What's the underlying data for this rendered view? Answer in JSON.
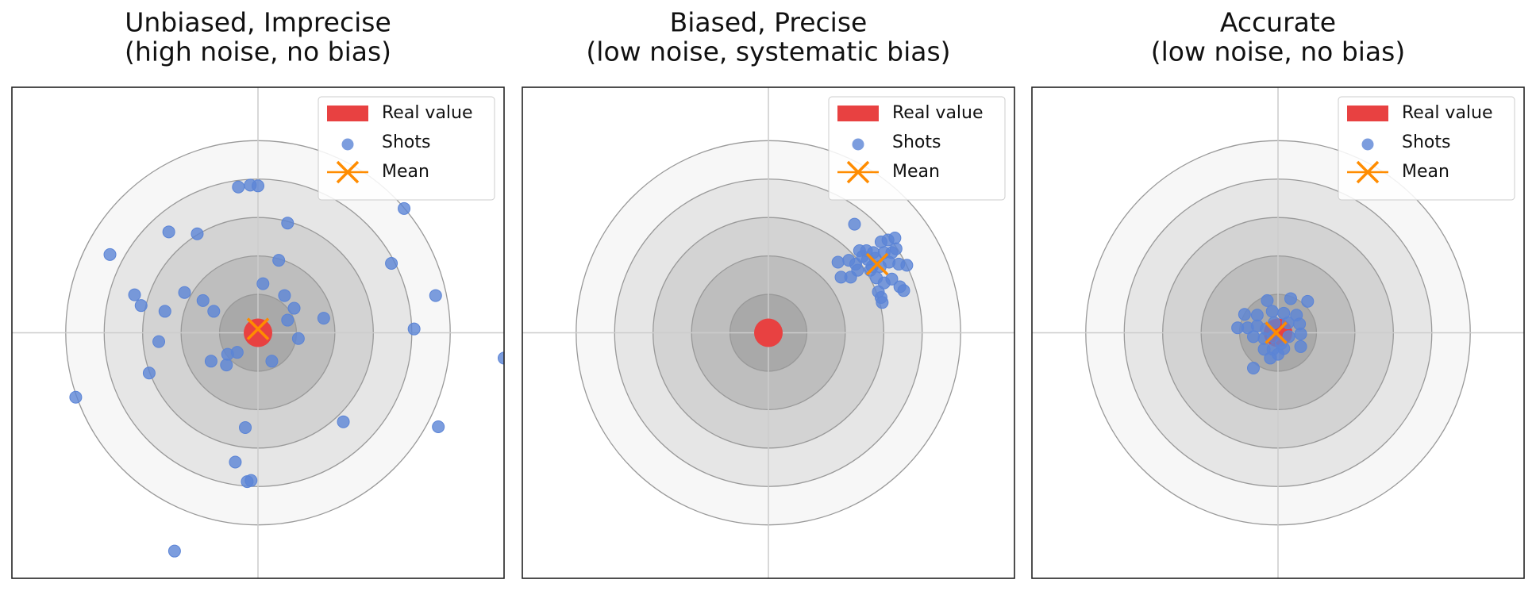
{
  "chart_data": [
    {
      "type": "scatter",
      "title": "Unbiased, Imprecise",
      "subtitle": "(high noise, no bias)",
      "xlim": [
        -6.4,
        6.4
      ],
      "ylim": [
        -6.4,
        6.4
      ],
      "rings": [
        5,
        4,
        3,
        2,
        1
      ],
      "ring_colors": [
        "#f7f7f7",
        "#e6e6e6",
        "#d3d3d3",
        "#bebebe",
        "#a9a9a9"
      ],
      "crosshair": true,
      "legend": "upper right",
      "series": [
        {
          "name": "Real value",
          "color": "#e84141",
          "x": [
            0
          ],
          "y": [
            0
          ]
        },
        {
          "name": "Shots",
          "color": "#5b84d6",
          "x": [
            -0.51,
            -0.2,
            0,
            3.8,
            -2.32,
            -1.58,
            0.77,
            -3.85,
            0.54,
            3.47,
            -3.21,
            -3.04,
            -1.91,
            -1.43,
            -2.42,
            -1.15,
            0.13,
            0.69,
            0.94,
            0.77,
            1.71,
            4.62,
            4.06,
            1.05,
            -2.58,
            -0.54,
            -0.79,
            -1.22,
            -0.82,
            0.36,
            -2.83,
            6.4,
            -4.74,
            2.22,
            4.69,
            -0.33,
            -0.59,
            -0.28,
            -0.18,
            -2.17
          ],
          "y": [
            3.8,
            3.85,
            3.83,
            3.24,
            2.63,
            2.58,
            2.86,
            2.04,
            1.89,
            1.81,
            0.99,
            0.71,
            1.05,
            0.84,
            0.56,
            0.56,
            1.28,
            0.97,
            0.64,
            0.33,
            0.38,
            0.97,
            0.1,
            -0.15,
            -0.23,
            -0.51,
            -0.56,
            -0.74,
            -0.84,
            -0.74,
            -1.05,
            -0.66,
            -1.68,
            -2.32,
            -2.45,
            -2.47,
            -3.37,
            -3.88,
            -3.85,
            -5.69
          ]
        },
        {
          "name": "Mean",
          "color": "#ff8c00",
          "x": [
            0
          ],
          "y": [
            0.1
          ]
        }
      ]
    },
    {
      "type": "scatter",
      "title": "Biased, Precise",
      "subtitle": "(low noise, systematic bias)",
      "xlim": [
        -6.4,
        6.4
      ],
      "ylim": [
        -6.4,
        6.4
      ],
      "rings": [
        5,
        4,
        3,
        2,
        1
      ],
      "ring_colors": [
        "#f7f7f7",
        "#e6e6e6",
        "#d3d3d3",
        "#bebebe",
        "#a9a9a9"
      ],
      "crosshair": true,
      "legend": "upper right",
      "series": [
        {
          "name": "Real value",
          "color": "#e84141",
          "x": [
            0
          ],
          "y": [
            0
          ]
        },
        {
          "name": "Shots",
          "color": "#5b84d6",
          "x": [
            2.24,
            2.37,
            2.55,
            1.81,
            2.09,
            2.27,
            2.45,
            2.73,
            2.93,
            3.11,
            3.29,
            3.01,
            3.21,
            3.32,
            2.7,
            2.91,
            3.14,
            3.39,
            3.6,
            1.89,
            2.14,
            2.81,
            3.01,
            3.21,
            3.42,
            3.52,
            2.86,
            2.93,
            2.96,
            2.65,
            2.32,
            2.58,
            2.78
          ],
          "y": [
            2.83,
            2.14,
            2.14,
            1.84,
            1.89,
            1.79,
            1.99,
            2.09,
            2.37,
            2.42,
            2.47,
            2.09,
            2.09,
            2.19,
            1.73,
            1.73,
            1.84,
            1.79,
            1.76,
            1.45,
            1.45,
            1.43,
            1.3,
            1.4,
            1.2,
            1.1,
            1.07,
            0.92,
            0.79,
            1.63,
            1.63,
            1.91,
            1.94
          ]
        },
        {
          "name": "Mean",
          "color": "#ff8c00",
          "x": [
            2.83
          ],
          "y": [
            1.79
          ]
        }
      ]
    },
    {
      "type": "scatter",
      "title": "Accurate",
      "subtitle": "(low noise, no bias)",
      "xlim": [
        -6.4,
        6.4
      ],
      "ylim": [
        -6.4,
        6.4
      ],
      "rings": [
        5,
        4,
        3,
        2,
        1
      ],
      "ring_colors": [
        "#f7f7f7",
        "#e6e6e6",
        "#d3d3d3",
        "#bebebe",
        "#a9a9a9"
      ],
      "crosshair": true,
      "legend": "upper right",
      "series": [
        {
          "name": "Real value",
          "color": "#e84141",
          "x": [
            0
          ],
          "y": [
            0
          ]
        },
        {
          "name": "Shots",
          "color": "#5b84d6",
          "x": [
            -0.28,
            0.33,
            0.77,
            -0.87,
            -0.54,
            -0.15,
            0.15,
            0.48,
            -1.05,
            -0.79,
            -0.54,
            -0.31,
            -0.1,
            0.26,
            0.56,
            -0.64,
            -0.36,
            -0.13,
            0.28,
            0.59,
            -0.36,
            -0.13,
            0.15,
            0.59,
            0.08,
            -0.2,
            -0.64,
            0
          ],
          "y": [
            0.84,
            0.89,
            0.82,
            0.48,
            0.46,
            0.56,
            0.51,
            0.46,
            0.13,
            0.13,
            0.18,
            0.1,
            0.26,
            0.26,
            0.23,
            -0.1,
            -0.15,
            -0.1,
            -0.1,
            -0.03,
            -0.43,
            -0.43,
            -0.41,
            -0.36,
            -0.28,
            -0.66,
            -0.92,
            -0.56
          ]
        },
        {
          "name": "Mean",
          "color": "#ff8c00",
          "x": [
            -0.05
          ],
          "y": [
            0
          ]
        }
      ]
    }
  ]
}
